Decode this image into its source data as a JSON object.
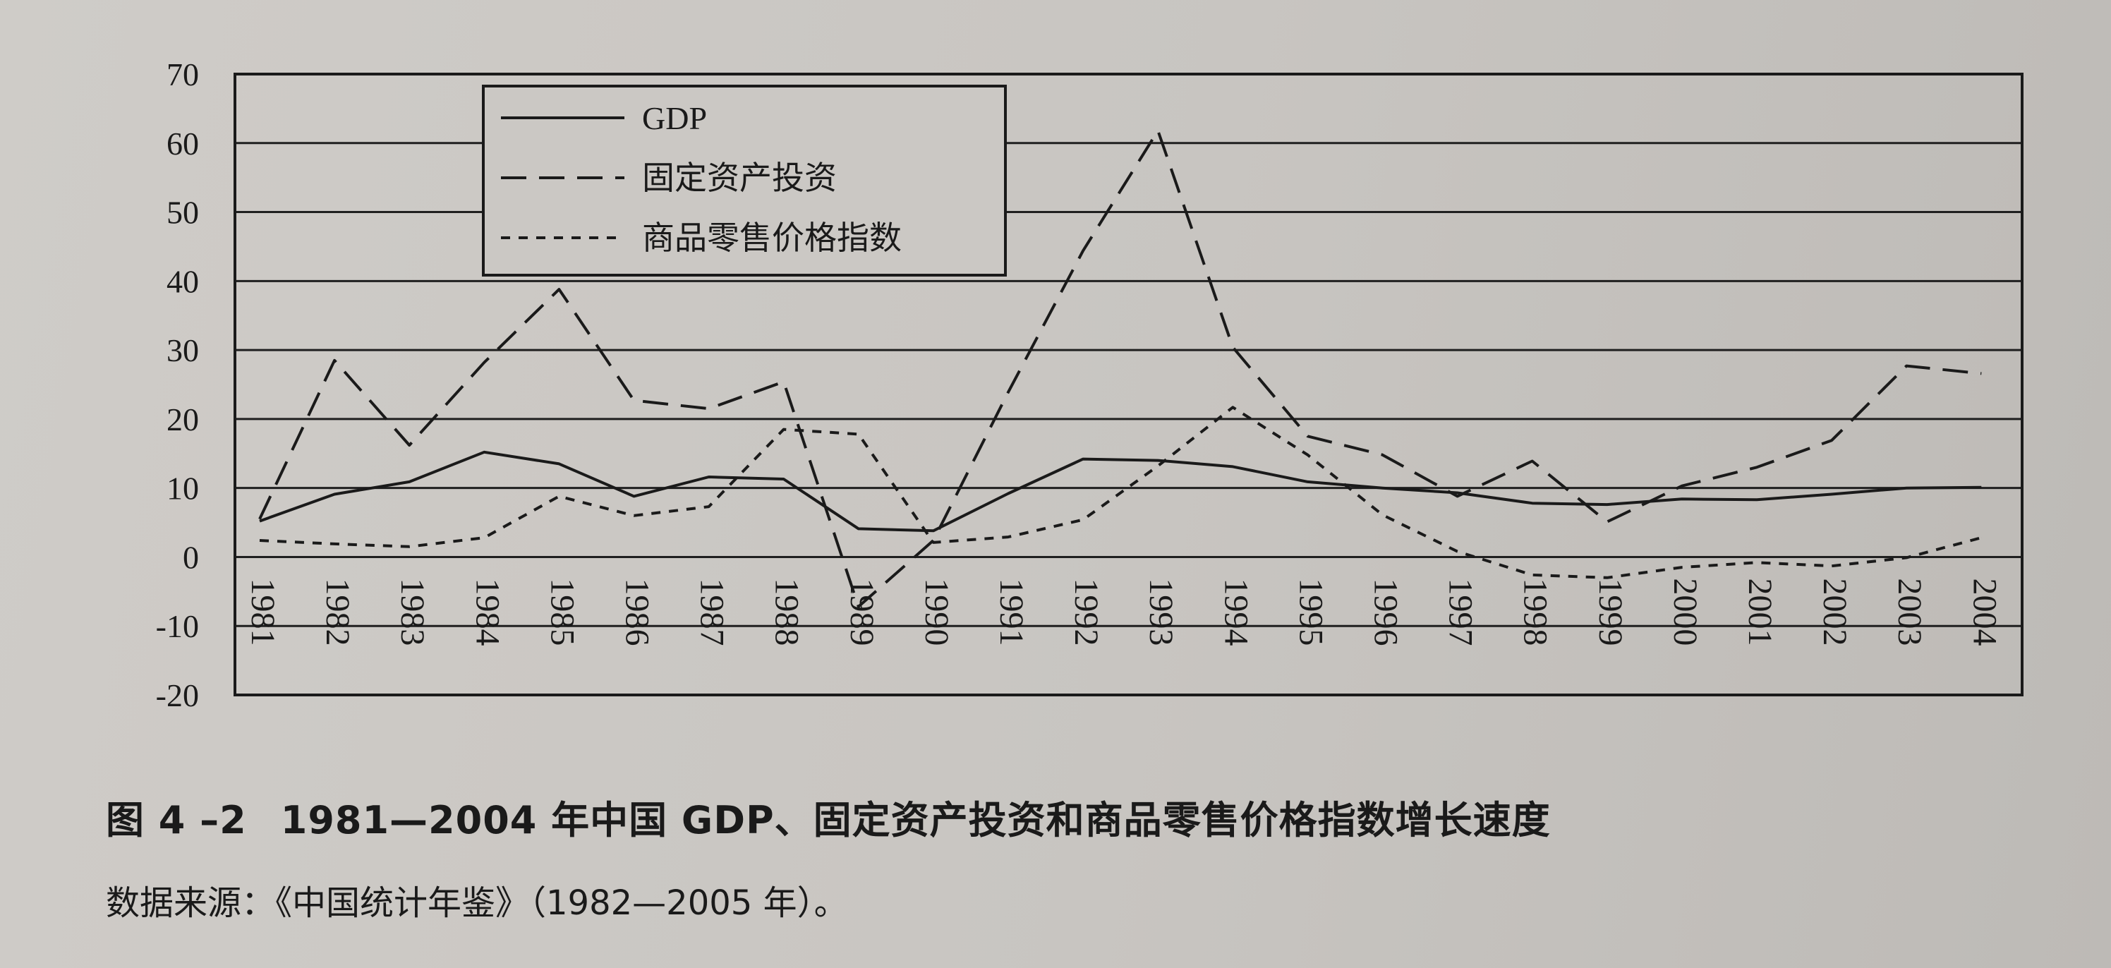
{
  "caption": {
    "figure_no": "图 4 –2",
    "title": "1981—2004 年中国 GDP、固定资产投资和商品零售价格指数增长速度"
  },
  "source_note": "数据来源：《中国统计年鉴》（1982—2005 年）。",
  "chart_data": {
    "type": "line",
    "categories": [
      "1981",
      "1982",
      "1983",
      "1984",
      "1985",
      "1986",
      "1987",
      "1988",
      "1989",
      "1990",
      "1991",
      "1992",
      "1993",
      "1994",
      "1995",
      "1996",
      "1997",
      "1998",
      "1999",
      "2000",
      "2001",
      "2002",
      "2003",
      "2004"
    ],
    "ylim": [
      -20,
      70
    ],
    "yticks": [
      "70",
      "60",
      "50",
      "40",
      "30",
      "20",
      "10",
      "0",
      "-10",
      "-20"
    ],
    "grid": "horizontal",
    "legend_position": "top-left",
    "series": [
      {
        "name": "GDP",
        "style": "solid",
        "values": [
          5.2,
          9.1,
          10.9,
          15.2,
          13.5,
          8.8,
          11.6,
          11.3,
          4.1,
          3.8,
          9.2,
          14.2,
          14.0,
          13.1,
          10.9,
          10.0,
          9.3,
          7.8,
          7.6,
          8.4,
          8.3,
          9.1,
          10.0,
          10.1
        ]
      },
      {
        "name": "固定资产投资",
        "style": "dashed",
        "values": [
          5.5,
          28.5,
          16.2,
          28.2,
          38.8,
          22.7,
          21.5,
          25.4,
          -7.2,
          2.4,
          23.9,
          44.4,
          61.8,
          30.4,
          17.5,
          14.8,
          8.8,
          13.9,
          5.1,
          10.3,
          13.0,
          16.9,
          27.7,
          26.6
        ]
      },
      {
        "name": "商品零售价格指数",
        "style": "dotted",
        "values": [
          2.4,
          1.9,
          1.5,
          2.8,
          8.8,
          6.0,
          7.3,
          18.5,
          17.8,
          2.1,
          2.9,
          5.4,
          13.2,
          21.7,
          14.8,
          6.1,
          0.8,
          -2.6,
          -3.0,
          -1.5,
          -0.8,
          -1.3,
          -0.1,
          2.8
        ]
      }
    ]
  }
}
